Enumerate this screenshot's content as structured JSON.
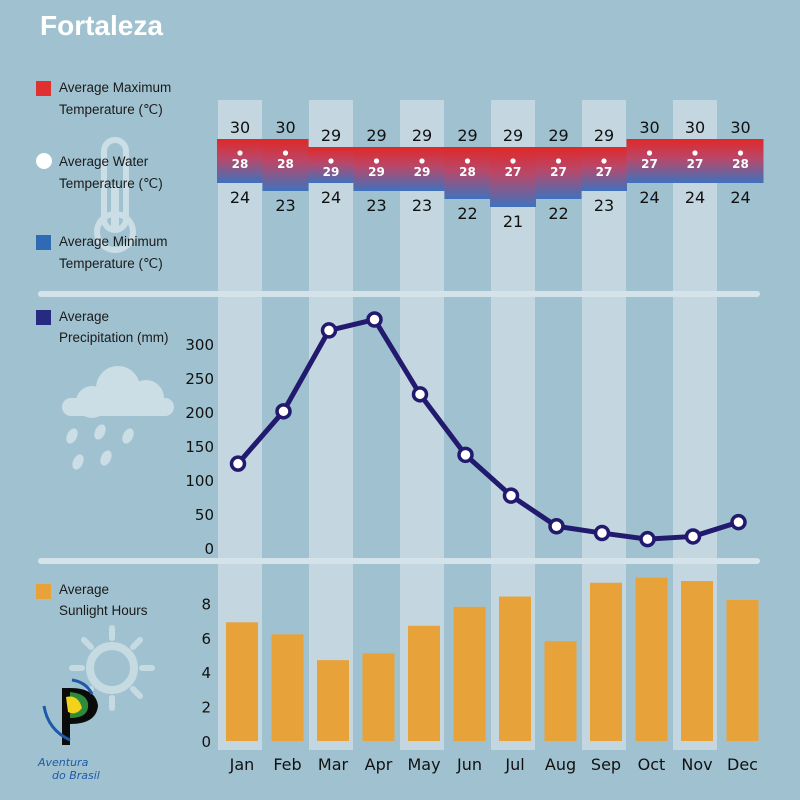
{
  "title": "Fortaleza",
  "legend": {
    "max_temp": [
      "Average Maximum",
      "Temperature (℃)"
    ],
    "water_temp": [
      "Average Water",
      "Temperature (℃)"
    ],
    "min_temp": [
      "Average Minimum",
      "Temperature (℃)"
    ],
    "precipitation": [
      "Average",
      "Precipitation (mm)"
    ],
    "sunlight": [
      "Average",
      "Sunlight Hours"
    ]
  },
  "colors": {
    "background": "#a0c2d0",
    "column_band": "#c4d7e1",
    "max_temp": "#e03030",
    "min_temp": "#3d6db8",
    "precip_line": "#221a6e",
    "sunlight_bar": "#e8a23a",
    "divider": "#d4e3ea"
  },
  "logo": {
    "line1": "Aventura",
    "line2": "do Brasil"
  },
  "chart_data": [
    {
      "type": "table",
      "name": "temperature",
      "categories": [
        "Jan",
        "Feb",
        "Mar",
        "Apr",
        "May",
        "Jun",
        "Jul",
        "Aug",
        "Sep",
        "Oct",
        "Nov",
        "Dec"
      ],
      "max_temp": [
        30,
        30,
        29,
        29,
        29,
        29,
        29,
        29,
        29,
        30,
        30,
        30
      ],
      "water_temp": [
        28,
        28,
        29,
        29,
        29,
        28,
        27,
        27,
        27,
        27,
        27,
        28
      ],
      "min_temp": [
        24,
        23,
        24,
        23,
        23,
        22,
        21,
        22,
        23,
        24,
        24,
        24
      ]
    },
    {
      "type": "line",
      "name": "precipitation",
      "categories": [
        "Jan",
        "Feb",
        "Mar",
        "Apr",
        "May",
        "Jun",
        "Jul",
        "Aug",
        "Sep",
        "Oct",
        "Nov",
        "Dec"
      ],
      "values": [
        124,
        201,
        320,
        336,
        226,
        137,
        77,
        32,
        22,
        13,
        17,
        38
      ],
      "yticks": [
        0,
        50,
        100,
        150,
        200,
        250,
        300
      ],
      "ylim": [
        0,
        340
      ]
    },
    {
      "type": "bar",
      "name": "sunlight",
      "categories": [
        "Jan",
        "Feb",
        "Mar",
        "Apr",
        "May",
        "Jun",
        "Jul",
        "Aug",
        "Sep",
        "Oct",
        "Nov",
        "Dec"
      ],
      "values": [
        6.9,
        6.2,
        4.7,
        5.1,
        6.7,
        7.8,
        8.4,
        5.8,
        9.2,
        9.5,
        9.3,
        8.2
      ],
      "yticks": [
        0,
        2,
        4,
        6,
        8
      ],
      "ylim": [
        0,
        10
      ]
    }
  ]
}
